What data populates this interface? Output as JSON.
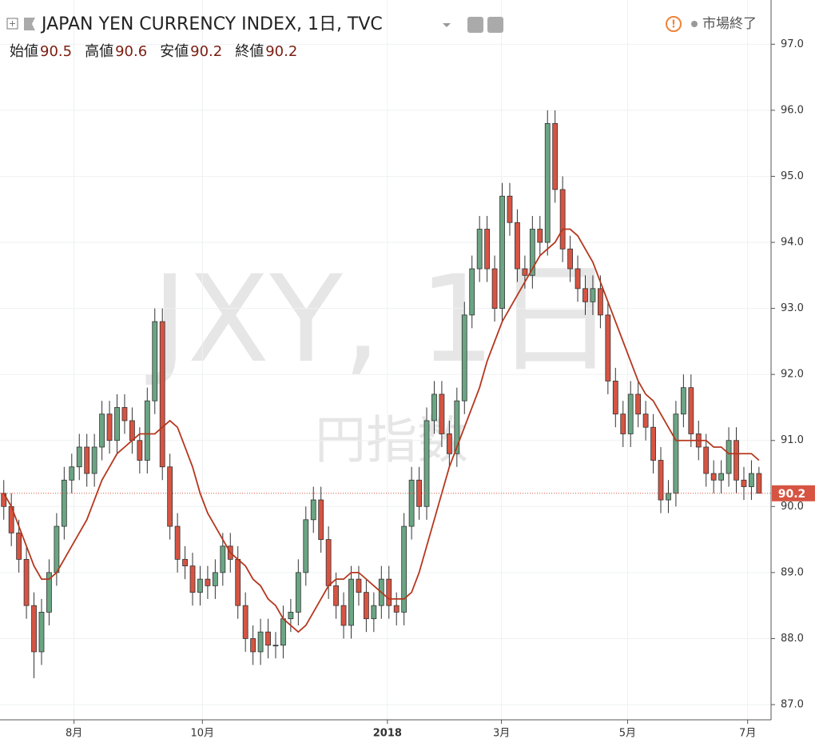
{
  "chart_data": {
    "type": "candlestick",
    "title": "JAPAN YEN CURRENCY INDEX, 1日, TVC",
    "status": "市場終了",
    "ohlc_labels": [
      "始値",
      "高値",
      "安値",
      "終値"
    ],
    "watermark": "JXY, 1日",
    "watermark_sub": "円指数",
    "up_color": "#6ba583",
    "down_color": "#d75442",
    "border_color": "#333333",
    "last_price_line": true,
    "last_price_color": "#d75442",
    "x": [
      0,
      1,
      2,
      3,
      4,
      5,
      6,
      7,
      8,
      9,
      10,
      11,
      12,
      13,
      14,
      15,
      16,
      17,
      18,
      19,
      20,
      21,
      22,
      23,
      24,
      25,
      26,
      27,
      28,
      29,
      30,
      31,
      32,
      33,
      34,
      35,
      36,
      37,
      38,
      39,
      40,
      41,
      42,
      43,
      44,
      45,
      46,
      47,
      48,
      49,
      50,
      51,
      52,
      53,
      54,
      55,
      56,
      57,
      58,
      59,
      60,
      61,
      62,
      63,
      64,
      65,
      66,
      67,
      68,
      69,
      70,
      71,
      72,
      73,
      74,
      75,
      76,
      77,
      78,
      79,
      80,
      81,
      82,
      83,
      84,
      85,
      86,
      87,
      88,
      89,
      90,
      91,
      92,
      93,
      94,
      95,
      96,
      97,
      98,
      99,
      100
    ],
    "open": [
      90.2,
      90.0,
      89.6,
      89.2,
      88.5,
      87.8,
      88.4,
      89.0,
      89.7,
      90.4,
      90.6,
      90.9,
      90.5,
      90.9,
      91.4,
      91.0,
      91.5,
      91.3,
      91.0,
      90.7,
      91.6,
      92.8,
      90.6,
      89.7,
      89.2,
      89.1,
      88.7,
      88.9,
      88.8,
      89.0,
      89.4,
      89.2,
      88.5,
      88.0,
      87.8,
      88.1,
      87.9,
      87.9,
      88.3,
      88.4,
      89.0,
      89.8,
      90.1,
      89.5,
      88.8,
      88.5,
      88.2,
      88.9,
      88.7,
      88.3,
      88.5,
      88.9,
      88.5,
      88.4,
      89.7,
      90.4,
      90.0,
      91.3,
      91.7,
      91.1,
      90.8,
      91.6,
      92.9,
      93.6,
      94.2,
      93.6,
      93.0,
      94.7,
      94.3,
      93.6,
      93.5,
      94.2,
      94.0,
      95.8,
      94.8,
      93.9,
      93.6,
      93.3,
      93.1,
      93.3,
      92.9,
      91.9,
      91.4,
      91.1,
      91.7,
      91.4,
      91.2,
      90.7,
      90.1,
      90.2,
      91.4,
      91.8,
      91.1,
      90.9,
      90.5,
      90.4,
      90.5,
      91.0,
      90.4,
      90.3,
      90.5
    ],
    "high": [
      90.4,
      90.2,
      89.8,
      89.4,
      88.7,
      88.6,
      89.2,
      89.9,
      90.6,
      90.8,
      91.1,
      91.1,
      91.1,
      91.6,
      91.6,
      91.7,
      91.7,
      91.5,
      91.2,
      91.8,
      93.0,
      93.0,
      90.8,
      89.9,
      89.4,
      89.3,
      89.1,
      89.1,
      89.2,
      89.6,
      89.6,
      89.4,
      88.7,
      88.2,
      88.3,
      88.3,
      88.1,
      88.5,
      88.6,
      89.2,
      90.0,
      90.3,
      90.3,
      89.7,
      89.0,
      88.7,
      89.1,
      89.1,
      88.9,
      88.7,
      89.1,
      89.1,
      88.7,
      89.9,
      90.6,
      90.6,
      91.5,
      91.9,
      91.9,
      91.3,
      91.8,
      93.1,
      93.8,
      94.4,
      94.4,
      93.8,
      94.9,
      94.9,
      94.5,
      93.8,
      94.4,
      94.4,
      96.0,
      96.0,
      95.0,
      94.1,
      93.8,
      93.5,
      93.5,
      93.5,
      93.1,
      92.1,
      91.6,
      91.9,
      91.9,
      91.6,
      91.4,
      90.9,
      90.4,
      91.6,
      92.0,
      92.0,
      91.3,
      91.1,
      90.7,
      90.7,
      91.2,
      91.2,
      90.6,
      90.7,
      90.6
    ],
    "low": [
      89.8,
      89.4,
      89.0,
      88.3,
      87.4,
      87.6,
      88.2,
      88.8,
      89.5,
      90.2,
      90.4,
      90.3,
      90.3,
      90.7,
      90.8,
      90.8,
      91.1,
      90.8,
      90.5,
      90.5,
      91.4,
      90.4,
      89.5,
      89.0,
      88.9,
      88.5,
      88.5,
      88.6,
      88.6,
      88.8,
      89.0,
      88.3,
      87.8,
      87.6,
      87.6,
      87.7,
      87.7,
      87.7,
      88.1,
      88.2,
      88.8,
      89.6,
      89.3,
      88.6,
      88.3,
      88.0,
      88.0,
      88.5,
      88.1,
      88.1,
      88.3,
      88.3,
      88.2,
      88.2,
      89.5,
      89.8,
      89.8,
      91.1,
      90.9,
      90.6,
      90.6,
      91.4,
      92.7,
      93.4,
      93.4,
      92.8,
      92.8,
      94.1,
      93.4,
      93.3,
      93.3,
      93.8,
      93.8,
      94.6,
      93.7,
      93.4,
      93.1,
      92.9,
      92.9,
      92.7,
      91.7,
      91.2,
      90.9,
      90.9,
      91.2,
      91.0,
      90.5,
      89.9,
      89.9,
      90.0,
      91.2,
      90.9,
      90.7,
      90.3,
      90.2,
      90.2,
      90.3,
      90.2,
      90.1,
      90.1,
      90.2
    ],
    "close": [
      90.0,
      89.6,
      89.2,
      88.5,
      87.8,
      88.4,
      89.0,
      89.7,
      90.4,
      90.6,
      90.9,
      90.5,
      90.9,
      91.4,
      91.0,
      91.5,
      91.3,
      91.0,
      90.7,
      91.6,
      92.8,
      90.6,
      89.7,
      89.2,
      89.1,
      88.7,
      88.9,
      88.8,
      89.0,
      89.4,
      89.2,
      88.5,
      88.0,
      87.8,
      88.1,
      87.9,
      87.9,
      88.3,
      88.4,
      89.0,
      89.8,
      90.1,
      89.5,
      88.8,
      88.5,
      88.2,
      88.9,
      88.7,
      88.3,
      88.5,
      88.9,
      88.5,
      88.4,
      89.7,
      90.4,
      90.0,
      91.3,
      91.7,
      91.1,
      90.8,
      91.6,
      92.9,
      93.6,
      94.2,
      93.6,
      93.0,
      94.7,
      94.3,
      93.6,
      93.5,
      94.2,
      94.0,
      95.8,
      94.8,
      93.9,
      93.6,
      93.3,
      93.1,
      93.3,
      92.9,
      91.9,
      91.4,
      91.1,
      91.7,
      91.4,
      91.2,
      90.7,
      90.1,
      90.2,
      91.4,
      91.8,
      91.1,
      90.9,
      90.5,
      90.4,
      90.5,
      91.0,
      90.4,
      90.3,
      90.5,
      90.2
    ],
    "ma": {
      "color": "#b5371e",
      "values": [
        90.2,
        90.0,
        89.7,
        89.4,
        89.1,
        88.9,
        88.9,
        89.0,
        89.2,
        89.4,
        89.6,
        89.8,
        90.1,
        90.4,
        90.6,
        90.8,
        90.9,
        91.0,
        91.1,
        91.1,
        91.1,
        91.2,
        91.3,
        91.2,
        90.9,
        90.6,
        90.2,
        89.9,
        89.7,
        89.5,
        89.3,
        89.2,
        89.1,
        88.9,
        88.8,
        88.6,
        88.5,
        88.3,
        88.2,
        88.1,
        88.2,
        88.4,
        88.6,
        88.8,
        88.9,
        88.9,
        89.0,
        89.0,
        88.9,
        88.8,
        88.7,
        88.6,
        88.6,
        88.6,
        88.7,
        89.0,
        89.4,
        89.8,
        90.2,
        90.6,
        90.9,
        91.2,
        91.5,
        91.8,
        92.2,
        92.5,
        92.8,
        93.0,
        93.2,
        93.4,
        93.6,
        93.8,
        93.9,
        94.0,
        94.2,
        94.2,
        94.1,
        93.9,
        93.7,
        93.4,
        93.1,
        92.8,
        92.5,
        92.2,
        91.9,
        91.7,
        91.6,
        91.4,
        91.2,
        91.0,
        91.0,
        91.0,
        91.0,
        91.0,
        90.9,
        90.9,
        90.8,
        90.8,
        90.8,
        90.8,
        90.7
      ]
    },
    "xlim": [
      -0.5,
      101.6
    ],
    "ylim": [
      86.77,
      97.67
    ],
    "xticks": [
      {
        "value": 9.3,
        "label": "8月"
      },
      {
        "value": 26.3,
        "label": "10月"
      },
      {
        "value": 50.8,
        "label": "2018"
      },
      {
        "value": 65.9,
        "label": "3月"
      },
      {
        "value": 82.6,
        "label": "5月"
      },
      {
        "value": 98.5,
        "label": "7月"
      }
    ],
    "yticks": [
      {
        "value": 87,
        "label": "87.0"
      },
      {
        "value": 88,
        "label": "88.0"
      },
      {
        "value": 89,
        "label": "89.0"
      },
      {
        "value": 90,
        "label": "90.0"
      },
      {
        "value": 91,
        "label": "91.0"
      },
      {
        "value": 92,
        "label": "92.0"
      },
      {
        "value": 93,
        "label": "93.0"
      },
      {
        "value": 94,
        "label": "94.0"
      },
      {
        "value": 95,
        "label": "95.0"
      },
      {
        "value": 96,
        "label": "96.0"
      },
      {
        "value": 97,
        "label": "97.0"
      }
    ]
  }
}
